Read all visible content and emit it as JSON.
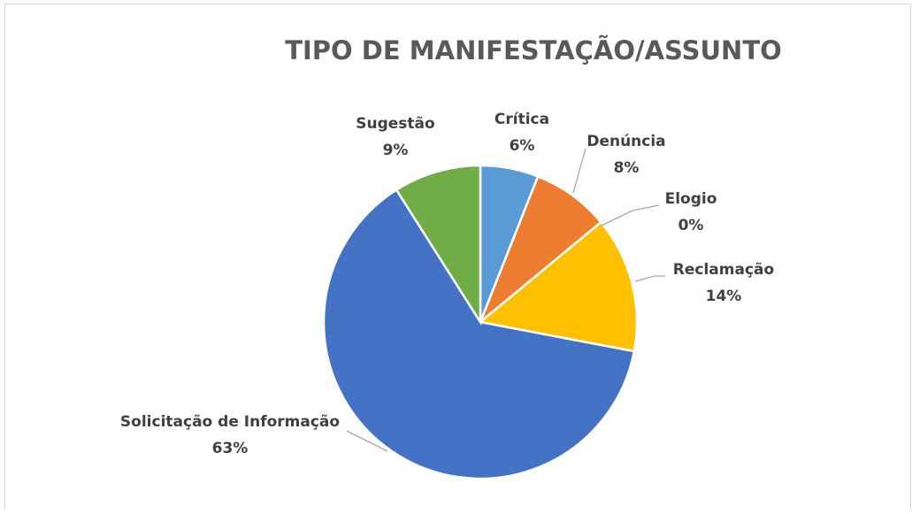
{
  "chart_data": {
    "type": "pie",
    "title": "TIPO DE MANIFESTAÇÃO/ASSUNTO",
    "categories": [
      "Crítica",
      "Denúncia",
      "Elogio",
      "Reclamação",
      "Solicitação de Informação",
      "Sugestão"
    ],
    "values": [
      6,
      8,
      0,
      14,
      63,
      9
    ],
    "value_labels": [
      "6%",
      "8%",
      "0%",
      "14%",
      "63%",
      "9%"
    ],
    "colors": [
      "#5b9bd5",
      "#ed7d31",
      "#a5a5a5",
      "#ffc000",
      "#4472c4",
      "#70ad47"
    ]
  }
}
